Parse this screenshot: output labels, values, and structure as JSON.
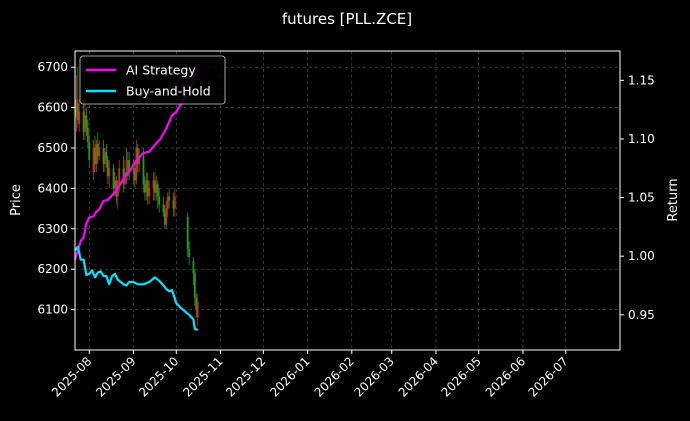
{
  "chart_data": {
    "type": "line",
    "title": "futures [PLL.ZCE]",
    "ylabel_left": "Price",
    "ylabel_right": "Return",
    "x_tick_labels": [
      "2025-08",
      "2025-09",
      "2025-10",
      "2025-11",
      "2025-12",
      "2026-01",
      "2026-02",
      "2026-03",
      "2026-04",
      "2026-05",
      "2026-06",
      "2026-07"
    ],
    "x_tick_dates": [
      "2025-08-01",
      "2025-09-01",
      "2025-10-01",
      "2025-11-01",
      "2025-12-01",
      "2026-01-01",
      "2026-02-01",
      "2026-03-01",
      "2026-04-01",
      "2026-05-01",
      "2026-06-01",
      "2026-07-01"
    ],
    "xlim": [
      "2025-07-22",
      "2026-08-08"
    ],
    "y_left_ticks": [
      6100,
      6200,
      6300,
      6400,
      6500,
      6600,
      6700
    ],
    "y_left_lim": [
      6000,
      6740
    ],
    "y_right_ticks": [
      0.95,
      1.0,
      1.05,
      1.1,
      1.15
    ],
    "y_right_lim": [
      0.92,
      1.175
    ],
    "grid": true,
    "legend_position": "top-left",
    "series": [
      {
        "name": "AI Strategy",
        "axis": "right",
        "color": "#ff00ff",
        "points": [
          [
            "2025-07-22",
            0.997
          ],
          [
            "2025-07-24",
            1.005
          ],
          [
            "2025-07-26",
            1.013
          ],
          [
            "2025-07-28",
            1.016
          ],
          [
            "2025-07-30",
            1.028
          ],
          [
            "2025-08-01",
            1.033
          ],
          [
            "2025-08-04",
            1.034
          ],
          [
            "2025-08-06",
            1.038
          ],
          [
            "2025-08-08",
            1.04
          ],
          [
            "2025-08-11",
            1.047
          ],
          [
            "2025-08-14",
            1.048
          ],
          [
            "2025-08-17",
            1.052
          ],
          [
            "2025-08-20",
            1.056
          ],
          [
            "2025-08-23",
            1.062
          ],
          [
            "2025-08-26",
            1.068
          ],
          [
            "2025-08-29",
            1.072
          ],
          [
            "2025-09-01",
            1.078
          ],
          [
            "2025-09-04",
            1.083
          ],
          [
            "2025-09-08",
            1.088
          ],
          [
            "2025-09-12",
            1.089
          ],
          [
            "2025-09-16",
            1.095
          ],
          [
            "2025-09-20",
            1.1
          ],
          [
            "2025-09-24",
            1.109
          ],
          [
            "2025-09-28",
            1.12
          ],
          [
            "2025-10-01",
            1.123
          ],
          [
            "2025-10-05",
            1.131
          ],
          [
            "2025-10-09",
            1.14
          ],
          [
            "2025-10-13",
            1.148
          ],
          [
            "2025-10-16",
            1.16
          ]
        ]
      },
      {
        "name": "Buy-and-Hold",
        "axis": "right",
        "color": "#00e5ff",
        "points": [
          [
            "2025-07-22",
            1.005
          ],
          [
            "2025-07-24",
            1.008
          ],
          [
            "2025-07-26",
            0.997
          ],
          [
            "2025-07-28",
            0.997
          ],
          [
            "2025-07-30",
            0.984
          ],
          [
            "2025-08-01",
            0.985
          ],
          [
            "2025-08-03",
            0.988
          ],
          [
            "2025-08-05",
            0.982
          ],
          [
            "2025-08-07",
            0.986
          ],
          [
            "2025-08-09",
            0.987
          ],
          [
            "2025-08-11",
            0.983
          ],
          [
            "2025-08-13",
            0.983
          ],
          [
            "2025-08-15",
            0.976
          ],
          [
            "2025-08-17",
            0.983
          ],
          [
            "2025-08-19",
            0.985
          ],
          [
            "2025-08-21",
            0.98
          ],
          [
            "2025-08-23",
            0.978
          ],
          [
            "2025-08-25",
            0.976
          ],
          [
            "2025-08-27",
            0.975
          ],
          [
            "2025-08-29",
            0.978
          ],
          [
            "2025-09-01",
            0.978
          ],
          [
            "2025-09-04",
            0.976
          ],
          [
            "2025-09-08",
            0.976
          ],
          [
            "2025-09-12",
            0.978
          ],
          [
            "2025-09-16",
            0.982
          ],
          [
            "2025-09-19",
            0.979
          ],
          [
            "2025-09-22",
            0.975
          ],
          [
            "2025-09-24",
            0.972
          ],
          [
            "2025-09-26",
            0.97
          ],
          [
            "2025-09-28",
            0.971
          ],
          [
            "2025-10-01",
            0.96
          ],
          [
            "2025-10-04",
            0.956
          ],
          [
            "2025-10-07",
            0.953
          ],
          [
            "2025-10-10",
            0.95
          ],
          [
            "2025-10-13",
            0.946
          ],
          [
            "2025-10-14",
            0.938
          ],
          [
            "2025-10-16",
            0.937
          ]
        ]
      }
    ],
    "candles": [
      [
        "2025-07-23",
        6576,
        6620,
        6540,
        6680
      ],
      [
        "2025-07-24",
        6610,
        6570,
        6550,
        6700
      ],
      [
        "2025-07-25",
        6560,
        6590,
        6540,
        6620
      ],
      [
        "2025-07-28",
        6590,
        6540,
        6520,
        6620
      ],
      [
        "2025-07-29",
        6540,
        6580,
        6520,
        6640
      ],
      [
        "2025-07-30",
        6580,
        6550,
        6530,
        6600
      ],
      [
        "2025-07-31",
        6550,
        6515,
        6500,
        6570
      ],
      [
        "2025-08-01",
        6515,
        6470,
        6450,
        6530
      ],
      [
        "2025-08-04",
        6440,
        6500,
        6420,
        6520
      ],
      [
        "2025-08-05",
        6500,
        6460,
        6440,
        6530
      ],
      [
        "2025-08-06",
        6460,
        6510,
        6440,
        6520
      ],
      [
        "2025-08-07",
        6510,
        6480,
        6460,
        6540
      ],
      [
        "2025-08-08",
        6480,
        6500,
        6470,
        6520
      ],
      [
        "2025-08-11",
        6500,
        6460,
        6440,
        6520
      ],
      [
        "2025-08-12",
        6460,
        6490,
        6440,
        6500
      ],
      [
        "2025-08-13",
        6490,
        6470,
        6450,
        6510
      ],
      [
        "2025-08-14",
        6470,
        6430,
        6410,
        6480
      ],
      [
        "2025-08-15",
        6430,
        6450,
        6400,
        6470
      ],
      [
        "2025-08-18",
        6450,
        6400,
        6380,
        6460
      ],
      [
        "2025-08-19",
        6400,
        6420,
        6380,
        6440
      ],
      [
        "2025-08-20",
        6420,
        6380,
        6360,
        6430
      ],
      [
        "2025-08-21",
        6380,
        6410,
        6350,
        6420
      ],
      [
        "2025-08-22",
        6410,
        6450,
        6390,
        6470
      ],
      [
        "2025-08-25",
        6450,
        6410,
        6390,
        6480
      ],
      [
        "2025-08-26",
        6410,
        6440,
        6400,
        6470
      ],
      [
        "2025-08-27",
        6440,
        6430,
        6410,
        6500
      ],
      [
        "2025-08-28",
        6430,
        6470,
        6420,
        6490
      ],
      [
        "2025-08-29",
        6470,
        6440,
        6420,
        6490
      ],
      [
        "2025-09-01",
        6440,
        6450,
        6410,
        6470
      ],
      [
        "2025-09-02",
        6450,
        6420,
        6400,
        6470
      ],
      [
        "2025-09-03",
        6420,
        6500,
        6410,
        6520
      ],
      [
        "2025-09-04",
        6500,
        6460,
        6440,
        6510
      ],
      [
        "2025-09-05",
        6460,
        6480,
        6440,
        6500
      ],
      [
        "2025-09-08",
        6480,
        6410,
        6390,
        6500
      ],
      [
        "2025-09-09",
        6410,
        6390,
        6370,
        6430
      ],
      [
        "2025-09-10",
        6390,
        6420,
        6370,
        6440
      ],
      [
        "2025-09-11",
        6420,
        6380,
        6360,
        6440
      ],
      [
        "2025-09-12",
        6380,
        6400,
        6360,
        6420
      ],
      [
        "2025-09-15",
        6400,
        6420,
        6370,
        6440
      ],
      [
        "2025-09-16",
        6420,
        6390,
        6370,
        6440
      ],
      [
        "2025-09-17",
        6390,
        6410,
        6370,
        6430
      ],
      [
        "2025-09-18",
        6410,
        6380,
        6350,
        6420
      ],
      [
        "2025-09-19",
        6380,
        6360,
        6340,
        6400
      ],
      [
        "2025-09-22",
        6360,
        6340,
        6330,
        6380
      ],
      [
        "2025-09-23",
        6340,
        6310,
        6300,
        6360
      ],
      [
        "2025-09-24",
        6310,
        6350,
        6300,
        6370
      ],
      [
        "2025-09-25",
        6350,
        6380,
        6330,
        6390
      ],
      [
        "2025-09-26",
        6380,
        6370,
        6350,
        6400
      ],
      [
        "2025-09-29",
        6370,
        6350,
        6330,
        6390
      ],
      [
        "2025-09-30",
        6350,
        6380,
        6330,
        6400
      ],
      [
        "2025-10-09",
        6330,
        6250,
        6230,
        6340
      ],
      [
        "2025-10-10",
        6250,
        6230,
        6210,
        6270
      ],
      [
        "2025-10-13",
        6220,
        6190,
        6160,
        6230
      ],
      [
        "2025-10-14",
        6190,
        6130,
        6110,
        6200
      ],
      [
        "2025-10-15",
        6130,
        6100,
        6080,
        6140
      ],
      [
        "2025-10-16",
        6080,
        6120,
        6060,
        6140
      ]
    ]
  }
}
